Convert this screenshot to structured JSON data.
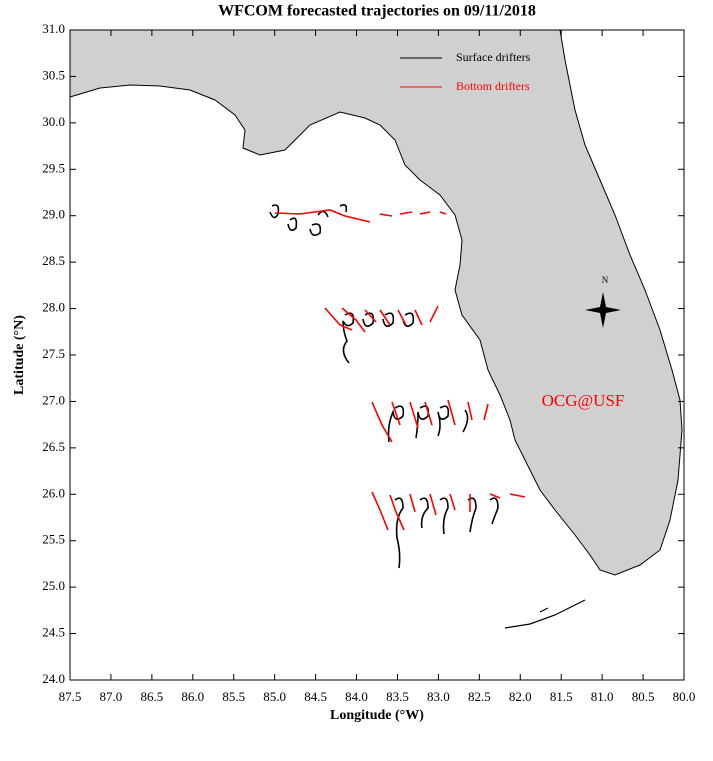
{
  "chart_data": {
    "type": "map",
    "title": "WFCOM forecasted trajectories on 09/11/2018",
    "x_label": "Longitude (°W)",
    "y_label": "Latitude (°N)",
    "xlim": [
      87.5,
      80.0
    ],
    "ylim": [
      24.0,
      31.0
    ],
    "xticks": [
      87.5,
      {
        "value": 87,
        "label": "87.0"
      },
      86.5,
      {
        "value": 86,
        "label": "86.0"
      },
      85.5,
      {
        "value": 85,
        "label": "85.0"
      },
      84.5,
      {
        "value": 84,
        "label": "84.0"
      },
      83.5,
      {
        "value": 83,
        "label": "83.0"
      },
      82.5,
      {
        "value": 82,
        "label": "82.0"
      },
      81.5,
      {
        "value": 81,
        "label": "81.0"
      },
      80.5,
      {
        "value": 80,
        "label": "80.0"
      }
    ],
    "yticks": [
      {
        "value": 24,
        "label": "24.0"
      },
      24.5,
      {
        "value": 25,
        "label": "25.0"
      },
      25.5,
      {
        "value": 26,
        "label": "26.0"
      },
      26.5,
      {
        "value": 27,
        "label": "27.0"
      },
      27.5,
      {
        "value": 28,
        "label": "28.0"
      },
      28.5,
      {
        "value": 29,
        "label": "29.0"
      },
      29.5,
      {
        "value": 30,
        "label": "30.0"
      },
      30.5,
      {
        "value": 31,
        "label": "31.0"
      }
    ],
    "series": [
      {
        "name": "Surface drifters",
        "color": "#000000"
      },
      {
        "name": "Bottom drifters",
        "color": "#ff0000"
      }
    ],
    "annotation": "OCG@USF",
    "annotation_color": "#ff0000",
    "compass_label": "N",
    "legend": "upper right"
  }
}
